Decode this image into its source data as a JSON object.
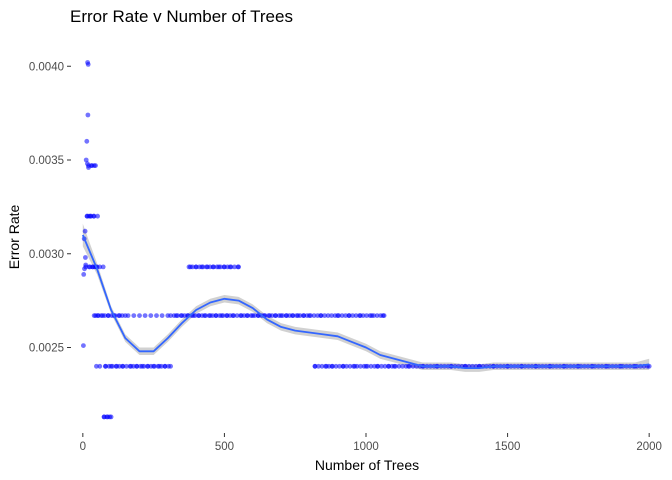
{
  "chart_data": {
    "type": "scatter",
    "title": "Error Rate v Number of Trees",
    "xlabel": "Number of Trees",
    "ylabel": "Error Rate",
    "xlim": [
      -10,
      2010
    ],
    "ylim": [
      0.00206,
      0.00414
    ],
    "x_ticks": [
      0,
      500,
      1000,
      1500,
      2000
    ],
    "x_tick_labels": [
      "0",
      "500",
      "1000",
      "1500",
      "2000"
    ],
    "y_ticks": [
      0.0025,
      0.003,
      0.0035,
      0.004
    ],
    "y_tick_labels": [
      "0.0025",
      "0.0030",
      "0.0035",
      "0.0040"
    ],
    "grid": false,
    "legend": "none",
    "point_color": "#0000ff",
    "smooth_color": "#3366ff",
    "band_color": "#b3b3b3",
    "series": [
      {
        "points": [
          [
            2,
            0.00251
          ],
          [
            3,
            0.00289
          ],
          [
            5,
            0.00308
          ],
          [
            6,
            0.00292
          ],
          [
            8,
            0.00312
          ],
          [
            9,
            0.00298
          ],
          [
            10,
            0.00294
          ],
          [
            12,
            0.0035
          ],
          [
            14,
            0.0036
          ],
          [
            15,
            0.0032
          ],
          [
            16,
            0.00348
          ],
          [
            17,
            0.00402
          ],
          [
            18,
            0.00374
          ],
          [
            19,
            0.00401
          ],
          [
            20,
            0.00346
          ],
          [
            22,
            0.0032
          ],
          [
            25,
            0.00293
          ],
          [
            28,
            0.0032
          ],
          [
            30,
            0.00347
          ],
          [
            35,
            0.00293
          ],
          [
            38,
            0.0032
          ],
          [
            40,
            0.00347
          ],
          [
            42,
            0.00293
          ],
          [
            45,
            0.00267
          ],
          [
            48,
            0.0024
          ],
          [
            50,
            0.00293
          ],
          [
            55,
            0.00267
          ],
          [
            60,
            0.0024
          ],
          [
            70,
            0.00267
          ],
          [
            75,
            0.00213
          ],
          [
            80,
            0.0024
          ],
          [
            85,
            0.00213
          ],
          [
            90,
            0.00267
          ],
          [
            95,
            0.00213
          ],
          [
            100,
            0.0024
          ],
          [
            110,
            0.00267
          ],
          [
            120,
            0.0024
          ],
          [
            130,
            0.00267
          ],
          [
            140,
            0.0024
          ],
          [
            150,
            0.00267
          ],
          [
            160,
            0.00267
          ],
          [
            170,
            0.0024
          ],
          [
            180,
            0.00267
          ],
          [
            190,
            0.0024
          ],
          [
            200,
            0.00267
          ],
          [
            210,
            0.0024
          ],
          [
            220,
            0.00267
          ],
          [
            230,
            0.0024
          ],
          [
            240,
            0.00267
          ],
          [
            250,
            0.0024
          ],
          [
            260,
            0.00267
          ],
          [
            270,
            0.0024
          ],
          [
            280,
            0.00267
          ],
          [
            290,
            0.0024
          ],
          [
            300,
            0.00267
          ],
          [
            310,
            0.0024
          ],
          [
            330,
            0.00267
          ],
          [
            350,
            0.00267
          ],
          [
            370,
            0.00267
          ],
          [
            380,
            0.00293
          ],
          [
            390,
            0.00267
          ],
          [
            400,
            0.00293
          ],
          [
            410,
            0.00267
          ],
          [
            420,
            0.00293
          ],
          [
            430,
            0.00267
          ],
          [
            440,
            0.00293
          ],
          [
            450,
            0.00267
          ],
          [
            460,
            0.00293
          ],
          [
            470,
            0.00267
          ],
          [
            480,
            0.00293
          ],
          [
            490,
            0.00267
          ],
          [
            500,
            0.00293
          ],
          [
            510,
            0.00267
          ],
          [
            520,
            0.00293
          ],
          [
            530,
            0.00267
          ],
          [
            550,
            0.00293
          ],
          [
            560,
            0.00267
          ],
          [
            580,
            0.00267
          ],
          [
            600,
            0.00267
          ],
          [
            620,
            0.00267
          ],
          [
            640,
            0.00267
          ],
          [
            660,
            0.00267
          ],
          [
            680,
            0.00267
          ],
          [
            700,
            0.00267
          ],
          [
            720,
            0.00267
          ],
          [
            740,
            0.00267
          ],
          [
            760,
            0.00267
          ],
          [
            780,
            0.00267
          ],
          [
            800,
            0.00267
          ],
          [
            820,
            0.0024
          ],
          [
            840,
            0.00267
          ],
          [
            860,
            0.0024
          ],
          [
            880,
            0.0024
          ],
          [
            900,
            0.00267
          ],
          [
            920,
            0.0024
          ],
          [
            940,
            0.00267
          ],
          [
            960,
            0.0024
          ],
          [
            980,
            0.00267
          ],
          [
            1000,
            0.0024
          ],
          [
            1020,
            0.00267
          ],
          [
            1040,
            0.0024
          ],
          [
            1060,
            0.00267
          ],
          [
            1080,
            0.0024
          ],
          [
            1100,
            0.0024
          ],
          [
            1150,
            0.0024
          ],
          [
            1200,
            0.0024
          ],
          [
            1250,
            0.0024
          ],
          [
            1300,
            0.0024
          ],
          [
            1350,
            0.0024
          ],
          [
            1400,
            0.0024
          ],
          [
            1450,
            0.0024
          ],
          [
            1500,
            0.0024
          ],
          [
            1550,
            0.0024
          ],
          [
            1600,
            0.0024
          ],
          [
            1650,
            0.0024
          ],
          [
            1700,
            0.0024
          ],
          [
            1750,
            0.0024
          ],
          [
            1800,
            0.0024
          ],
          [
            1850,
            0.0024
          ],
          [
            1900,
            0.0024
          ],
          [
            1950,
            0.0024
          ],
          [
            2000,
            0.0024
          ]
        ],
        "bands": [
          {
            "y": 0.0024,
            "x_from": 80,
            "x_to": 310
          },
          {
            "y": 0.00267,
            "x_from": 40,
            "x_to": 140
          },
          {
            "y": 0.00267,
            "x_from": 310,
            "x_to": 1070
          },
          {
            "y": 0.00293,
            "x_from": 375,
            "x_to": 550
          },
          {
            "y": 0.0024,
            "x_from": 820,
            "x_to": 2000
          },
          {
            "y": 0.00213,
            "x_from": 75,
            "x_to": 100
          },
          {
            "y": 0.00347,
            "x_from": 20,
            "x_to": 55
          },
          {
            "y": 0.0032,
            "x_from": 15,
            "x_to": 55
          },
          {
            "y": 0.00293,
            "x_from": 10,
            "x_to": 75
          }
        ]
      }
    ],
    "smooth": {
      "x": [
        0,
        50,
        100,
        150,
        200,
        250,
        300,
        350,
        400,
        450,
        500,
        550,
        600,
        650,
        700,
        750,
        800,
        850,
        900,
        950,
        1000,
        1050,
        1100,
        1150,
        1200,
        1250,
        1300,
        1350,
        1400,
        1450,
        1500,
        1550,
        1600,
        1650,
        1700,
        1750,
        1800,
        1850,
        1900,
        1950,
        2000
      ],
      "y": [
        0.0031,
        0.00292,
        0.0027,
        0.00255,
        0.00248,
        0.00248,
        0.00255,
        0.00263,
        0.0027,
        0.00274,
        0.00276,
        0.00275,
        0.00271,
        0.00265,
        0.00261,
        0.00259,
        0.00258,
        0.00257,
        0.00256,
        0.00253,
        0.0025,
        0.00246,
        0.00244,
        0.00242,
        0.0024,
        0.0024,
        0.0024,
        0.00239,
        0.00239,
        0.0024,
        0.0024,
        0.0024,
        0.0024,
        0.0024,
        0.0024,
        0.0024,
        0.0024,
        0.0024,
        0.0024,
        0.0024,
        0.00241
      ],
      "se": [
        6e-05,
        3e-05,
        2e-05,
        2e-05,
        2e-05,
        2e-05,
        2e-05,
        2e-05,
        2e-05,
        2e-05,
        2e-05,
        2e-05,
        2e-05,
        2e-05,
        2e-05,
        2e-05,
        2e-05,
        2e-05,
        2e-05,
        2e-05,
        2e-05,
        2e-05,
        2e-05,
        2e-05,
        2e-05,
        2e-05,
        2e-05,
        2e-05,
        2e-05,
        2e-05,
        2e-05,
        2e-05,
        2e-05,
        2e-05,
        2e-05,
        2e-05,
        2e-05,
        2e-05,
        2e-05,
        2e-05,
        3e-05
      ]
    }
  }
}
